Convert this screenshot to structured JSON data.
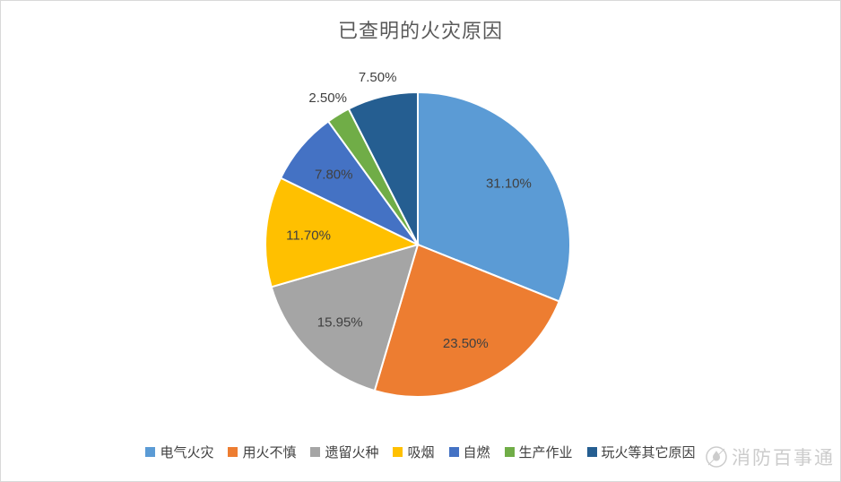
{
  "page": {
    "background": "#ffffff",
    "border_color": "#d9d9d9"
  },
  "chart_data": {
    "type": "pie",
    "title": "已查明的火灾原因",
    "title_color": "#595959",
    "legend_position": "bottom",
    "direction": "clockwise",
    "start_angle_deg": 0,
    "label_color": "#404040",
    "slice_border_color": "#ffffff",
    "slices": [
      {
        "label": "电气火灾",
        "value": 31.1,
        "display": "31.10%",
        "color": "#5B9BD5",
        "label_inside": true
      },
      {
        "label": "用火不慎",
        "value": 23.5,
        "display": "23.50%",
        "color": "#ED7D31",
        "label_inside": true
      },
      {
        "label": "遗留火种",
        "value": 15.95,
        "display": "15.95%",
        "color": "#A5A5A5",
        "label_inside": true
      },
      {
        "label": "吸烟",
        "value": 11.7,
        "display": "11.70%",
        "color": "#FFC000",
        "label_inside": true
      },
      {
        "label": "自燃",
        "value": 7.8,
        "display": "7.80%",
        "color": "#4472C4",
        "label_inside": true
      },
      {
        "label": "生产作业",
        "value": 2.5,
        "display": "2.50%",
        "color": "#70AD47",
        "label_inside": false
      },
      {
        "label": "玩火等其它原因",
        "value": 7.5,
        "display": "7.50%",
        "color": "#255E91",
        "label_inside": false
      }
    ]
  },
  "watermark": {
    "text": "消防百事通",
    "color": "#c4c4c4"
  }
}
